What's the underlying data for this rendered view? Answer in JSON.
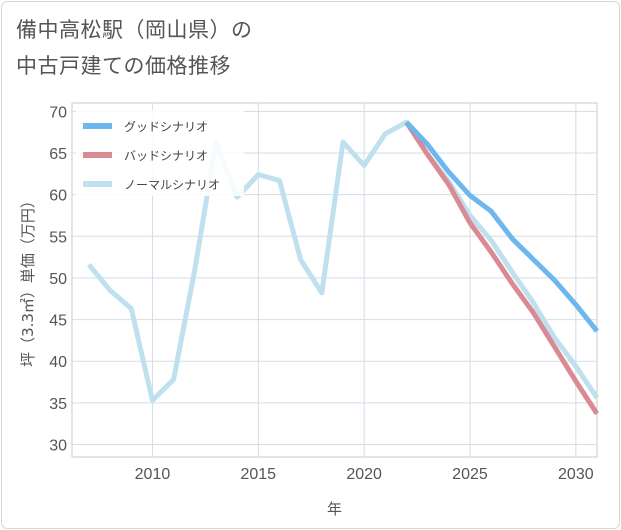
{
  "title_lines": [
    "備中高松駅（岡山県）の",
    "中古戸建ての価格推移"
  ],
  "chart_data": {
    "type": "line",
    "xlabel": "年",
    "ylabel": "坪（3.3㎡）単価（万円）",
    "xlim": [
      2006.2,
      2031
    ],
    "ylim": [
      28.5,
      71
    ],
    "xticks": [
      2010,
      2015,
      2020,
      2025,
      2030
    ],
    "yticks": [
      30,
      35,
      40,
      45,
      50,
      55,
      60,
      65,
      70
    ],
    "grid": true,
    "legend_position": "top-left",
    "series": [
      {
        "name": "グッドシナリオ",
        "color": "#6cb8ee",
        "x": [
          2022,
          2023,
          2024,
          2025,
          2026,
          2027,
          2028,
          2029,
          2030,
          2031
        ],
        "y": [
          68.7,
          66.0,
          62.7,
          59.9,
          58.0,
          54.7,
          52.2,
          49.7,
          46.8,
          43.6
        ]
      },
      {
        "name": "バッドシナリオ",
        "color": "#d98a92",
        "x": [
          2022,
          2023,
          2024,
          2025,
          2026,
          2027,
          2028,
          2029,
          2030,
          2031
        ],
        "y": [
          68.7,
          64.8,
          61.2,
          56.6,
          53.1,
          49.3,
          45.8,
          41.7,
          37.6,
          33.7
        ]
      },
      {
        "name": "ノーマルシナリオ",
        "color": "#bfe0ee",
        "x": [
          2007,
          2008,
          2009,
          2010,
          2011,
          2012,
          2013,
          2014,
          2015,
          2016,
          2017,
          2018,
          2019,
          2020,
          2021,
          2022,
          2023,
          2024,
          2025,
          2026,
          2027,
          2028,
          2029,
          2030,
          2031
        ],
        "y": [
          51.6,
          48.5,
          46.3,
          35.3,
          37.8,
          51.0,
          66.3,
          59.7,
          62.4,
          61.7,
          52.2,
          48.2,
          66.3,
          63.5,
          67.3,
          68.7,
          64.8,
          61.6,
          57.5,
          54.5,
          50.7,
          47.0,
          42.8,
          39.4,
          35.6
        ]
      }
    ]
  }
}
